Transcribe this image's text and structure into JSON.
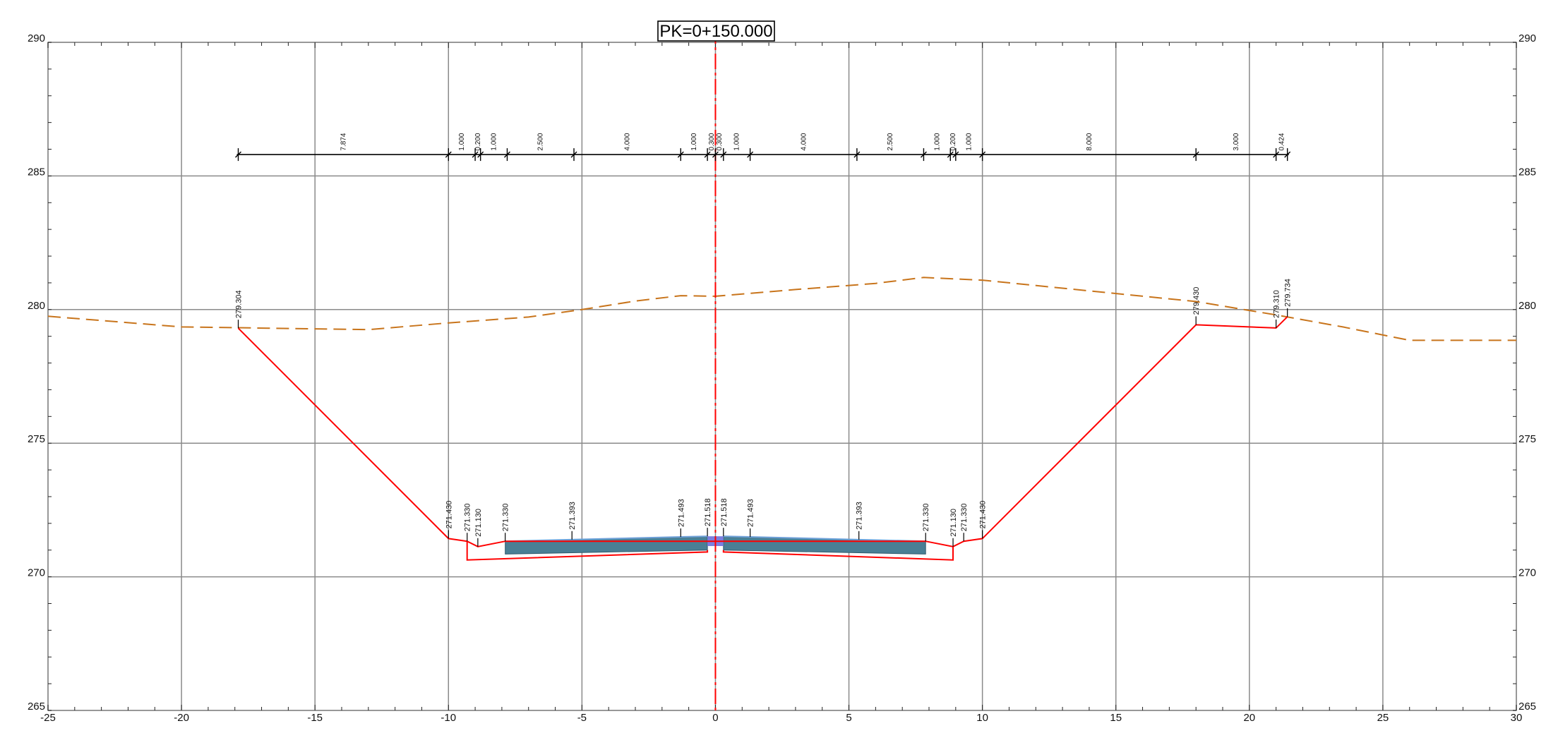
{
  "title": "PK=0+150.000",
  "chart_data": {
    "type": "line",
    "x_axis": {
      "min": -25,
      "max": 30,
      "major_step": 5,
      "minor_step": 1,
      "tick_labels": [
        "-25",
        "-20",
        "-15",
        "-10",
        "-5",
        "0",
        "5",
        "10",
        "15",
        "20",
        "25",
        "30"
      ]
    },
    "y_axis": {
      "min": 265,
      "max": 290,
      "major_step": 5,
      "minor_step": 1,
      "tick_labels": [
        "265",
        "270",
        "275",
        "280",
        "285",
        "290"
      ]
    },
    "grid": true,
    "colors": {
      "terrain": "#c8741b",
      "design": "#ff0000",
      "pavement": "#4a7f95",
      "center_strip": "#7b7fe0",
      "grid": "#8a8a8a",
      "axis": "#222222"
    },
    "terrain_line": {
      "style": "dashed",
      "x": [
        -25,
        -20,
        -13,
        -10,
        -7,
        -5,
        -3,
        -1.3,
        0,
        3,
        6,
        7.8,
        10,
        14,
        18,
        21,
        23.5,
        26,
        30
      ],
      "y": [
        279.75,
        279.35,
        279.25,
        279.5,
        279.72,
        280.0,
        280.32,
        280.52,
        280.5,
        280.75,
        280.98,
        281.2,
        281.1,
        280.7,
        280.3,
        279.8,
        279.35,
        278.85,
        278.85
      ]
    },
    "design_section": {
      "x": [
        -17.874,
        -10,
        -9.3,
        -8.9,
        -7.874,
        7.874,
        8.9,
        9.3,
        10,
        18,
        21,
        21.424
      ],
      "y": [
        279.304,
        271.43,
        271.33,
        271.13,
        271.33,
        271.33,
        271.13,
        271.33,
        271.43,
        279.43,
        279.31,
        279.734
      ]
    },
    "subgrade_lines": [
      {
        "x": [
          -9.3,
          -9.3,
          -0.3,
          -0.3
        ],
        "y": [
          271.33,
          270.63,
          270.93,
          271.0
        ]
      },
      {
        "x": [
          0.3,
          0.3,
          8.9,
          8.9
        ],
        "y": [
          271.0,
          270.93,
          270.63,
          271.13
        ]
      }
    ],
    "pavement_blocks": [
      {
        "x": [
          -7.874,
          -1.3,
          -0.3,
          -0.3,
          -7.874
        ],
        "y": [
          271.33,
          271.493,
          271.518,
          271.0,
          270.85
        ]
      },
      {
        "x": [
          0.3,
          1.3,
          7.874,
          7.874,
          0.3
        ],
        "y": [
          271.518,
          271.493,
          271.33,
          270.85,
          271.0
        ]
      }
    ],
    "center_strip": {
      "x": [
        -0.3,
        0.3,
        0.3,
        -0.3
      ],
      "y": [
        271.518,
        271.518,
        271.15,
        271.15
      ]
    },
    "elevation_labels": [
      {
        "x": -17.874,
        "y": 279.304,
        "text": "279.304"
      },
      {
        "x": -10,
        "y": 271.43,
        "text": "271.430"
      },
      {
        "x": -9.3,
        "y": 271.33,
        "text": "271.330"
      },
      {
        "x": -8.9,
        "y": 271.13,
        "text": "271.130"
      },
      {
        "x": -7.874,
        "y": 271.33,
        "text": "271.330"
      },
      {
        "x": -5.374,
        "y": 271.393,
        "text": "271.393"
      },
      {
        "x": -1.3,
        "y": 271.493,
        "text": "271.493"
      },
      {
        "x": -0.3,
        "y": 271.518,
        "text": "271.518"
      },
      {
        "x": 0.3,
        "y": 271.518,
        "text": "271.518"
      },
      {
        "x": 1.3,
        "y": 271.493,
        "text": "271.493"
      },
      {
        "x": 5.374,
        "y": 271.393,
        "text": "271.393"
      },
      {
        "x": 7.874,
        "y": 271.33,
        "text": "271.330"
      },
      {
        "x": 8.9,
        "y": 271.13,
        "text": "271.130"
      },
      {
        "x": 9.3,
        "y": 271.33,
        "text": "271.330"
      },
      {
        "x": 10,
        "y": 271.43,
        "text": "271.430"
      },
      {
        "x": 18,
        "y": 279.43,
        "text": "279.430"
      },
      {
        "x": 21,
        "y": 279.31,
        "text": "279.310"
      },
      {
        "x": 21.424,
        "y": 279.734,
        "text": "279.734"
      }
    ],
    "dimension_line": {
      "y": 285.8,
      "ticks": [
        -17.874,
        -10,
        -9,
        -8.8,
        -7.8,
        -5.3,
        -1.3,
        -0.3,
        0,
        0.3,
        1.3,
        5.3,
        7.8,
        8.8,
        9,
        10,
        18,
        21,
        21.424
      ],
      "segments": [
        {
          "from": -17.874,
          "to": -10,
          "label": "7.874"
        },
        {
          "from": -10,
          "to": -9,
          "label": "1.000"
        },
        {
          "from": -9,
          "to": -8.8,
          "label": "0.200"
        },
        {
          "from": -8.8,
          "to": -7.8,
          "label": "1.000"
        },
        {
          "from": -7.8,
          "to": -5.3,
          "label": "2.500"
        },
        {
          "from": -5.3,
          "to": -1.3,
          "label": "4.000"
        },
        {
          "from": -1.3,
          "to": -0.3,
          "label": "1.000"
        },
        {
          "from": -0.3,
          "to": 0,
          "label": "0.300"
        },
        {
          "from": 0,
          "to": 0.3,
          "label": "0.300"
        },
        {
          "from": 0.3,
          "to": 1.3,
          "label": "1.000"
        },
        {
          "from": 1.3,
          "to": 5.3,
          "label": "4.000"
        },
        {
          "from": 5.3,
          "to": 7.8,
          "label": "2.500"
        },
        {
          "from": 7.8,
          "to": 8.8,
          "label": "1.000"
        },
        {
          "from": 8.8,
          "to": 9,
          "label": "0.200"
        },
        {
          "from": 9,
          "to": 10,
          "label": "1.000"
        },
        {
          "from": 10,
          "to": 18,
          "label": "8.000"
        },
        {
          "from": 18,
          "to": 21,
          "label": "3.000"
        },
        {
          "from": 21,
          "to": 21.424,
          "label": "0.424"
        }
      ]
    }
  }
}
